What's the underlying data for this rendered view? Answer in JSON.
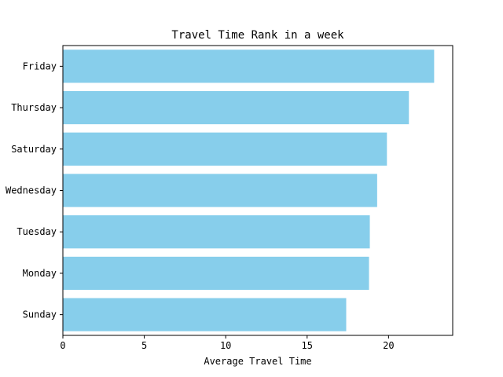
{
  "chart_data": {
    "type": "bar",
    "orientation": "horizontal",
    "title": "Travel Time Rank in a week",
    "xlabel": "Average Travel Time",
    "ylabel": "",
    "categories": [
      "Sunday",
      "Monday",
      "Tuesday",
      "Wednesday",
      "Saturday",
      "Thursday",
      "Friday"
    ],
    "category_tick_labels": [
      "Sunday",
      "Monday",
      "Tuesday",
      "' Wednesday",
      "Saturday",
      "Thursday",
      "Friday"
    ],
    "values": [
      17.4,
      18.8,
      18.85,
      19.3,
      19.9,
      21.25,
      22.8
    ],
    "xlim": [
      0,
      23.94
    ],
    "xticks": [
      0,
      5,
      10,
      15,
      20
    ],
    "xtick_labels": [
      "0",
      "5",
      "10",
      "15",
      "20"
    ],
    "bar_color": "#87ceeb",
    "grid": false,
    "legend": "none"
  }
}
